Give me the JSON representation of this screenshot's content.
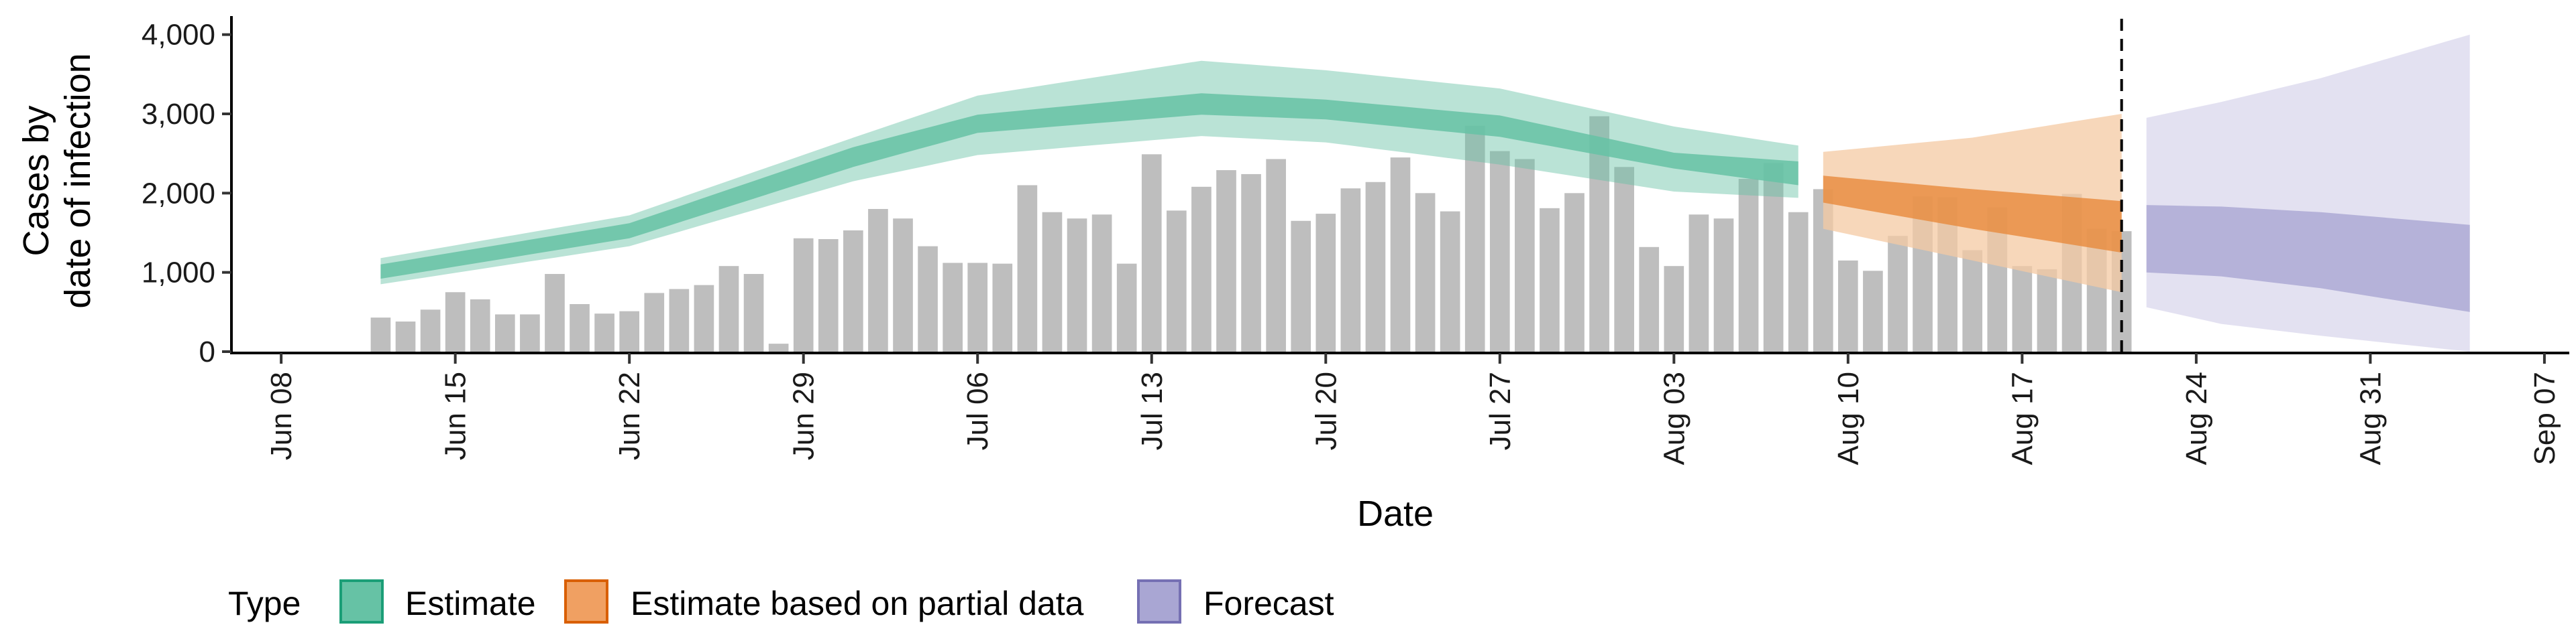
{
  "chart_data": {
    "type": "area",
    "xlabel": "Date",
    "ylabel_lines": [
      "Cases by",
      "date of infection"
    ],
    "ylim": [
      0,
      4200
    ],
    "x_range": [
      "2020-06-06",
      "2020-09-08"
    ],
    "y_ticks": [
      0,
      1000,
      2000,
      3000,
      4000
    ],
    "y_tick_labels": [
      "0",
      "1,000",
      "2,000",
      "3,000",
      "4,000"
    ],
    "x_ticks": [
      "2020-06-08",
      "2020-06-15",
      "2020-06-22",
      "2020-06-29",
      "2020-07-06",
      "2020-07-13",
      "2020-07-20",
      "2020-07-27",
      "2020-08-03",
      "2020-08-10",
      "2020-08-17",
      "2020-08-24",
      "2020-08-31",
      "2020-09-07"
    ],
    "x_tick_labels": [
      "Jun 08",
      "Jun 15",
      "Jun 22",
      "Jun 29",
      "Jul 06",
      "Jul 13",
      "Jul 20",
      "Jul 27",
      "Aug 03",
      "Aug 10",
      "Aug 17",
      "Aug 24",
      "Aug 31",
      "Sep 07"
    ],
    "vline_date": "2020-08-21",
    "grid": false,
    "legend": {
      "title": "Type",
      "position": "bottom",
      "items": [
        {
          "label": "Estimate",
          "fill": "#66c2a5",
          "stroke": "#1b9e77"
        },
        {
          "label": "Estimate based on partial data",
          "fill": "#f0a062",
          "stroke": "#d95f02"
        },
        {
          "label": "Forecast",
          "fill": "#a9a6d3",
          "stroke": "#7570b3"
        }
      ]
    },
    "bars": {
      "start_date": "2020-06-12",
      "color": "#bebebe",
      "values": [
        430,
        380,
        530,
        750,
        660,
        470,
        470,
        980,
        600,
        480,
        510,
        740,
        790,
        840,
        1080,
        980,
        100,
        1430,
        1420,
        1530,
        1800,
        1680,
        1330,
        1120,
        1120,
        1110,
        2100,
        1760,
        1680,
        1730,
        1110,
        2490,
        1780,
        2080,
        2290,
        2240,
        2430,
        1650,
        1740,
        2060,
        2140,
        2450,
        2000,
        1770,
        2850,
        2530,
        2430,
        1810,
        2000,
        2970,
        2330,
        1320,
        1080,
        1730,
        1680,
        2180,
        2380,
        1760,
        2050,
        1150,
        1020,
        1460,
        1960,
        1950,
        1280,
        1820,
        1080,
        1040,
        1990,
        1550,
        1520
      ]
    },
    "series": [
      {
        "name": "Estimate",
        "start_date": "2020-06-12",
        "end_date": "2020-08-08",
        "color_outer": "#66c2a5",
        "color_inner": "#1b9e77",
        "keys": [
          {
            "date": "2020-06-12",
            "lo90": 850,
            "lo50": 920,
            "hi50": 1100,
            "hi90": 1180
          },
          {
            "date": "2020-06-22",
            "lo90": 1330,
            "lo50": 1430,
            "hi50": 1620,
            "hi90": 1720
          },
          {
            "date": "2020-07-01",
            "lo90": 2150,
            "lo50": 2330,
            "hi50": 2580,
            "hi90": 2700
          },
          {
            "date": "2020-07-06",
            "lo90": 2480,
            "lo50": 2760,
            "hi50": 2990,
            "hi90": 3230
          },
          {
            "date": "2020-07-15",
            "lo90": 2720,
            "lo50": 2990,
            "hi50": 3260,
            "hi90": 3670
          },
          {
            "date": "2020-07-20",
            "lo90": 2640,
            "lo50": 2930,
            "hi50": 3180,
            "hi90": 3550
          },
          {
            "date": "2020-07-27",
            "lo90": 2360,
            "lo50": 2710,
            "hi50": 2980,
            "hi90": 3320
          },
          {
            "date": "2020-08-03",
            "lo90": 2020,
            "lo50": 2310,
            "hi50": 2510,
            "hi90": 2840
          },
          {
            "date": "2020-08-08",
            "lo90": 1940,
            "lo50": 2100,
            "hi50": 2400,
            "hi90": 2600
          }
        ]
      },
      {
        "name": "Estimate based on partial data",
        "start_date": "2020-08-09",
        "end_date": "2020-08-21",
        "color_outer": "#f4c9a3",
        "color_inner": "#e78a3c",
        "keys": [
          {
            "date": "2020-08-09",
            "lo90": 1550,
            "lo50": 1880,
            "hi50": 2220,
            "hi90": 2520
          },
          {
            "date": "2020-08-15",
            "lo90": 1150,
            "lo50": 1550,
            "hi50": 2050,
            "hi90": 2700
          },
          {
            "date": "2020-08-21",
            "lo90": 750,
            "lo50": 1250,
            "hi50": 1900,
            "hi90": 3000
          }
        ]
      },
      {
        "name": "Forecast",
        "start_date": "2020-08-22",
        "end_date": "2020-09-04",
        "color_outer": "#d9d7ec",
        "color_inner": "#a9a6d3",
        "keys": [
          {
            "date": "2020-08-22",
            "lo90": 560,
            "lo50": 1000,
            "hi50": 1850,
            "hi90": 2950
          },
          {
            "date": "2020-08-25",
            "lo90": 350,
            "lo50": 950,
            "hi50": 1830,
            "hi90": 3150
          },
          {
            "date": "2020-08-29",
            "lo90": 200,
            "lo50": 800,
            "hi50": 1760,
            "hi90": 3450
          },
          {
            "date": "2020-09-04",
            "lo90": 0,
            "lo50": 500,
            "hi50": 1600,
            "hi90": 4000
          }
        ]
      }
    ]
  }
}
